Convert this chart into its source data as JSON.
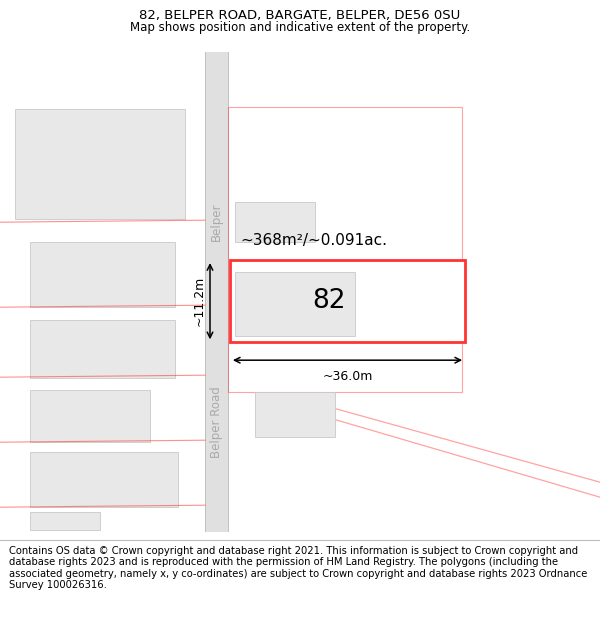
{
  "title_line1": "82, BELPER ROAD, BARGATE, BELPER, DE56 0SU",
  "title_line2": "Map shows position and indicative extent of the property.",
  "footer_text": "Contains OS data © Crown copyright and database right 2021. This information is subject to Crown copyright and database rights 2023 and is reproduced with the permission of HM Land Registry. The polygons (including the associated geometry, namely x, y co-ordinates) are subject to Crown copyright and database rights 2023 Ordnance Survey 100026316.",
  "map_bg": "#ffffff",
  "road_fill": "#e0e0e0",
  "road_edge": "#c0c0c0",
  "building_fill": "#e8e8e8",
  "building_edge": "#c8c8c8",
  "highlight_color": "#ff3333",
  "highlight_alpha": 0.55,
  "area_text": "~368m²/~0.091ac.",
  "label_82": "82",
  "dim_width": "~36.0m",
  "dim_height": "~11.2m",
  "belper_road_label_upper": "Belper",
  "belper_road_label_lower": "Belper Road",
  "road_label_color": "#aaaaaa",
  "footer_fontsize": 7.2,
  "title1_fontsize": 9.5,
  "title2_fontsize": 8.5
}
